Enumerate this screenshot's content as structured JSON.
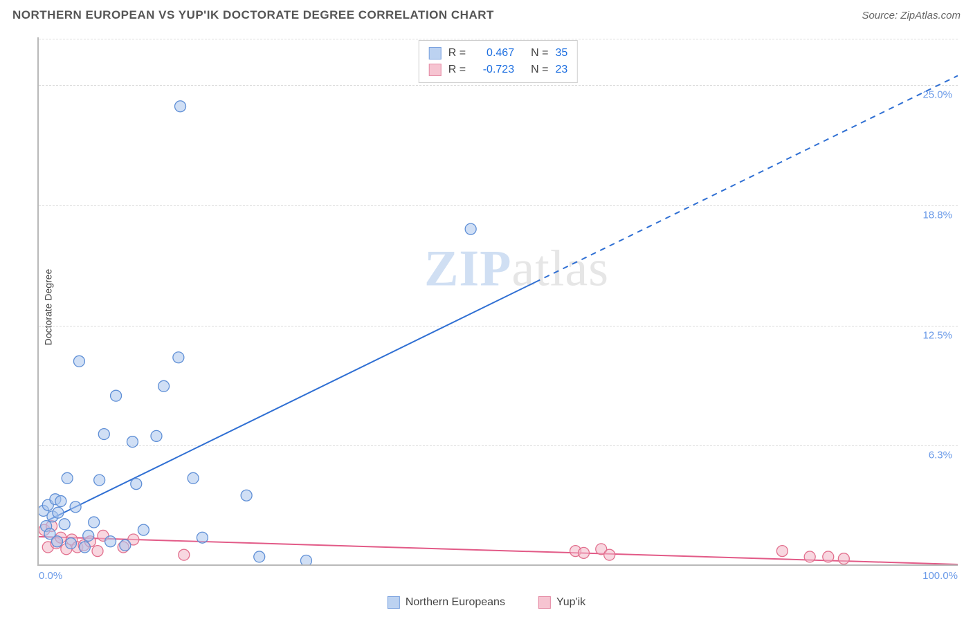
{
  "title": "NORTHERN EUROPEAN VS YUP'IK DOCTORATE DEGREE CORRELATION CHART",
  "source_label": "Source: ZipAtlas.com",
  "ylabel": "Doctorate Degree",
  "watermark_a": "ZIP",
  "watermark_b": "atlas",
  "chart": {
    "type": "scatter",
    "xlim": [
      0,
      100
    ],
    "ylim": [
      0,
      27.5
    ],
    "background_color": "#ffffff",
    "grid_color": "#dcdcdc",
    "axis_color": "#b9b9b9",
    "tick_color": "#6a9ae8",
    "yticks": [
      {
        "v": 6.25,
        "label": "6.3%"
      },
      {
        "v": 12.5,
        "label": "12.5%"
      },
      {
        "v": 18.75,
        "label": "18.8%"
      },
      {
        "v": 25.0,
        "label": "25.0%"
      }
    ],
    "xticks": [
      {
        "v": 0,
        "label": "0.0%"
      },
      {
        "v": 100,
        "label": "100.0%"
      }
    ],
    "marker_radius": 8,
    "marker_opacity": 0.55,
    "series": [
      {
        "name": "Northern Europeans",
        "color_fill": "#a9c4ec",
        "color_stroke": "#5f8fd6",
        "swatch_fill": "#bcd2f1",
        "swatch_border": "#7ba2df",
        "R": "0.467",
        "N": "35",
        "trend": {
          "color": "#2f6fd3",
          "width": 2,
          "solid_to_x": 54,
          "x0": 1.0,
          "y0": 2.3,
          "x1": 100,
          "y1": 25.5
        },
        "points": [
          [
            0.5,
            2.8
          ],
          [
            0.8,
            2.0
          ],
          [
            1.0,
            3.1
          ],
          [
            1.2,
            1.6
          ],
          [
            1.5,
            2.5
          ],
          [
            1.8,
            3.4
          ],
          [
            2.0,
            1.2
          ],
          [
            2.1,
            2.7
          ],
          [
            2.4,
            3.3
          ],
          [
            2.8,
            2.1
          ],
          [
            3.1,
            4.5
          ],
          [
            3.5,
            1.1
          ],
          [
            4.0,
            3.0
          ],
          [
            4.4,
            10.6
          ],
          [
            5.0,
            0.9
          ],
          [
            5.4,
            1.5
          ],
          [
            6.0,
            2.2
          ],
          [
            6.6,
            4.4
          ],
          [
            7.1,
            6.8
          ],
          [
            7.8,
            1.2
          ],
          [
            8.4,
            8.8
          ],
          [
            9.4,
            1.0
          ],
          [
            10.2,
            6.4
          ],
          [
            10.6,
            4.2
          ],
          [
            11.4,
            1.8
          ],
          [
            12.8,
            6.7
          ],
          [
            13.6,
            9.3
          ],
          [
            15.2,
            10.8
          ],
          [
            15.4,
            23.9
          ],
          [
            16.8,
            4.5
          ],
          [
            17.8,
            1.4
          ],
          [
            22.6,
            3.6
          ],
          [
            24.0,
            0.4
          ],
          [
            29.1,
            0.2
          ],
          [
            47.0,
            17.5
          ]
        ]
      },
      {
        "name": "Yup'ik",
        "color_fill": "#f3b6c6",
        "color_stroke": "#e2708e",
        "swatch_fill": "#f6c4d1",
        "swatch_border": "#e48aa4",
        "R": "-0.723",
        "N": "23",
        "trend": {
          "color": "#e25a87",
          "width": 2,
          "solid_to_x": 100,
          "x0": 0,
          "y0": 1.45,
          "x1": 100,
          "y1": 0.0
        },
        "points": [
          [
            0.6,
            1.8
          ],
          [
            1.0,
            0.9
          ],
          [
            1.4,
            2.0
          ],
          [
            1.9,
            1.1
          ],
          [
            2.4,
            1.4
          ],
          [
            3.0,
            0.8
          ],
          [
            3.6,
            1.3
          ],
          [
            4.2,
            0.9
          ],
          [
            4.9,
            1.0
          ],
          [
            5.6,
            1.2
          ],
          [
            6.4,
            0.7
          ],
          [
            7.0,
            1.5
          ],
          [
            9.2,
            0.9
          ],
          [
            10.3,
            1.3
          ],
          [
            15.8,
            0.5
          ],
          [
            58.4,
            0.7
          ],
          [
            59.3,
            0.6
          ],
          [
            61.2,
            0.8
          ],
          [
            62.1,
            0.5
          ],
          [
            80.9,
            0.7
          ],
          [
            83.9,
            0.4
          ],
          [
            85.9,
            0.4
          ],
          [
            87.6,
            0.3
          ]
        ]
      }
    ]
  },
  "legend_labels": {
    "r": "R",
    "n": "N",
    "eq": "="
  }
}
